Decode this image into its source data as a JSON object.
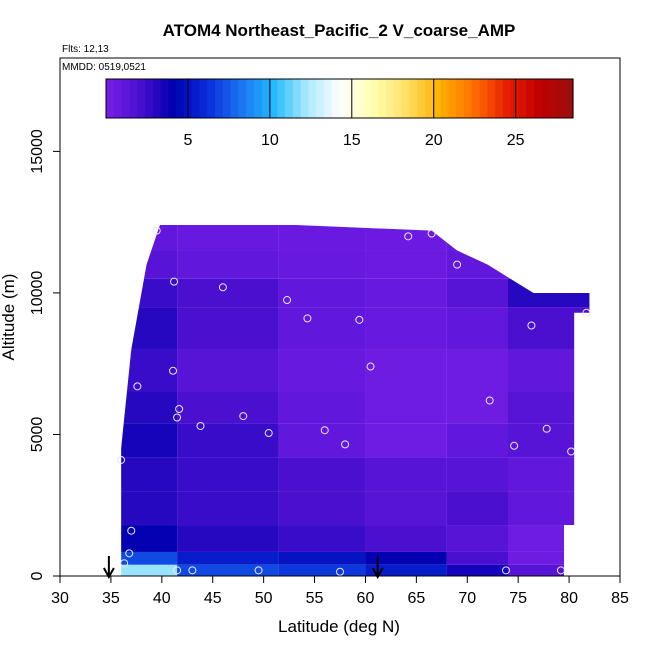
{
  "chart_data": {
    "type": "heatmap",
    "title": "ATOM4 Northeast_Pacific_2 V_coarse_AMP",
    "annotations": {
      "flights": "Flts: 12,13",
      "dates": "MMDD: 0519,0521"
    },
    "xlabel": "Latitude (deg N)",
    "ylabel": "Altitude (m)",
    "xlim": [
      30,
      85
    ],
    "ylim": [
      0,
      18300
    ],
    "xticks": [
      "30",
      "35",
      "40",
      "45",
      "50",
      "55",
      "60",
      "65",
      "70",
      "75",
      "80",
      "85"
    ],
    "yticks": [
      "0",
      "5000",
      "10000",
      "15000"
    ],
    "colorbar": {
      "min": 0,
      "max": 28.5,
      "ticks": [
        "5",
        "10",
        "15",
        "20",
        "25"
      ],
      "placement": "top inside plot",
      "colors": [
        "#7a1fe8",
        "#4a0fd0",
        "#0000b0",
        "#0a2ad8",
        "#1a70f0",
        "#20b8ff",
        "#a8e8ff",
        "#ffffff",
        "#ffffb0",
        "#ffe066",
        "#ffb000",
        "#ff7000",
        "#e82000",
        "#c00000",
        "#9a1010"
      ]
    },
    "heatmap_profile": {
      "lat_edges": [
        36.0,
        41.5,
        51.5,
        60,
        68,
        74,
        79
      ],
      "alt_edges": [
        0,
        400,
        850,
        1800,
        3000,
        4200,
        5400,
        6500,
        8000,
        9500,
        10500,
        11500,
        12400
      ],
      "values": [
        [
          12.0,
          7.0,
          6.5,
          5.5,
          3.5,
          1.5
        ],
        [
          7.0,
          5.5,
          5.0,
          4.0,
          2.0,
          0.5
        ],
        [
          4.0,
          3.0,
          2.5,
          2.0,
          1.5,
          0.5
        ],
        [
          3.0,
          2.5,
          2.0,
          1.5,
          2.0,
          1.0
        ],
        [
          3.0,
          2.5,
          2.0,
          1.5,
          1.5,
          1.0
        ],
        [
          3.5,
          2.5,
          1.0,
          0.5,
          1.0,
          1.5
        ],
        [
          3.0,
          2.0,
          1.0,
          0.5,
          0.5,
          1.5
        ],
        [
          2.5,
          1.5,
          0.8,
          0.5,
          0.5,
          1.0
        ],
        [
          3.0,
          2.0,
          1.0,
          0.8,
          1.0,
          2.0
        ],
        [
          2.5,
          2.0,
          1.0,
          0.8,
          1.5,
          3.0
        ],
        [
          1.5,
          1.0,
          0.8,
          0.6,
          1.0,
          1.5
        ],
        [
          1.0,
          0.8,
          0.7,
          0.6,
          0.8,
          1.0
        ]
      ],
      "domain_outline": [
        [
          36.0,
          0
        ],
        [
          79.5,
          0
        ],
        [
          79.5,
          1800
        ],
        [
          80.5,
          1800
        ],
        [
          80.5,
          9300
        ],
        [
          82.0,
          9300
        ],
        [
          82.0,
          10000
        ],
        [
          76.5,
          10000
        ],
        [
          72.0,
          11000
        ],
        [
          69.0,
          11500
        ],
        [
          66.5,
          12200
        ],
        [
          40.0,
          12600
        ],
        [
          38.5,
          11000
        ],
        [
          37.0,
          8000
        ],
        [
          36.0,
          4500
        ]
      ]
    },
    "markers": {
      "type": "arrow",
      "x": [
        34.8,
        61.2
      ]
    },
    "sample_points": {
      "x": [
        39.5,
        64.2,
        66.5,
        69.0,
        41.2,
        46.0,
        52.3,
        54.3,
        59.4,
        76.3,
        81.7,
        41.1,
        60.5,
        37.6,
        41.7,
        41.5,
        48.0,
        43.8,
        50.5,
        56.0,
        58.0,
        72.2,
        74.6,
        77.8,
        80.2,
        36.0,
        37.0,
        36.8,
        36.3,
        41.5,
        43.0,
        49.5,
        57.5,
        73.8,
        79.2
      ],
      "y": [
        12200,
        12000,
        12100,
        11000,
        10400,
        10200,
        9750,
        9100,
        9050,
        8850,
        9300,
        7250,
        7400,
        6700,
        5900,
        5600,
        5650,
        5300,
        5050,
        5150,
        4650,
        6200,
        4600,
        5200,
        4400,
        4100,
        1600,
        800,
        450,
        200,
        200,
        200,
        150,
        200,
        200
      ]
    }
  }
}
